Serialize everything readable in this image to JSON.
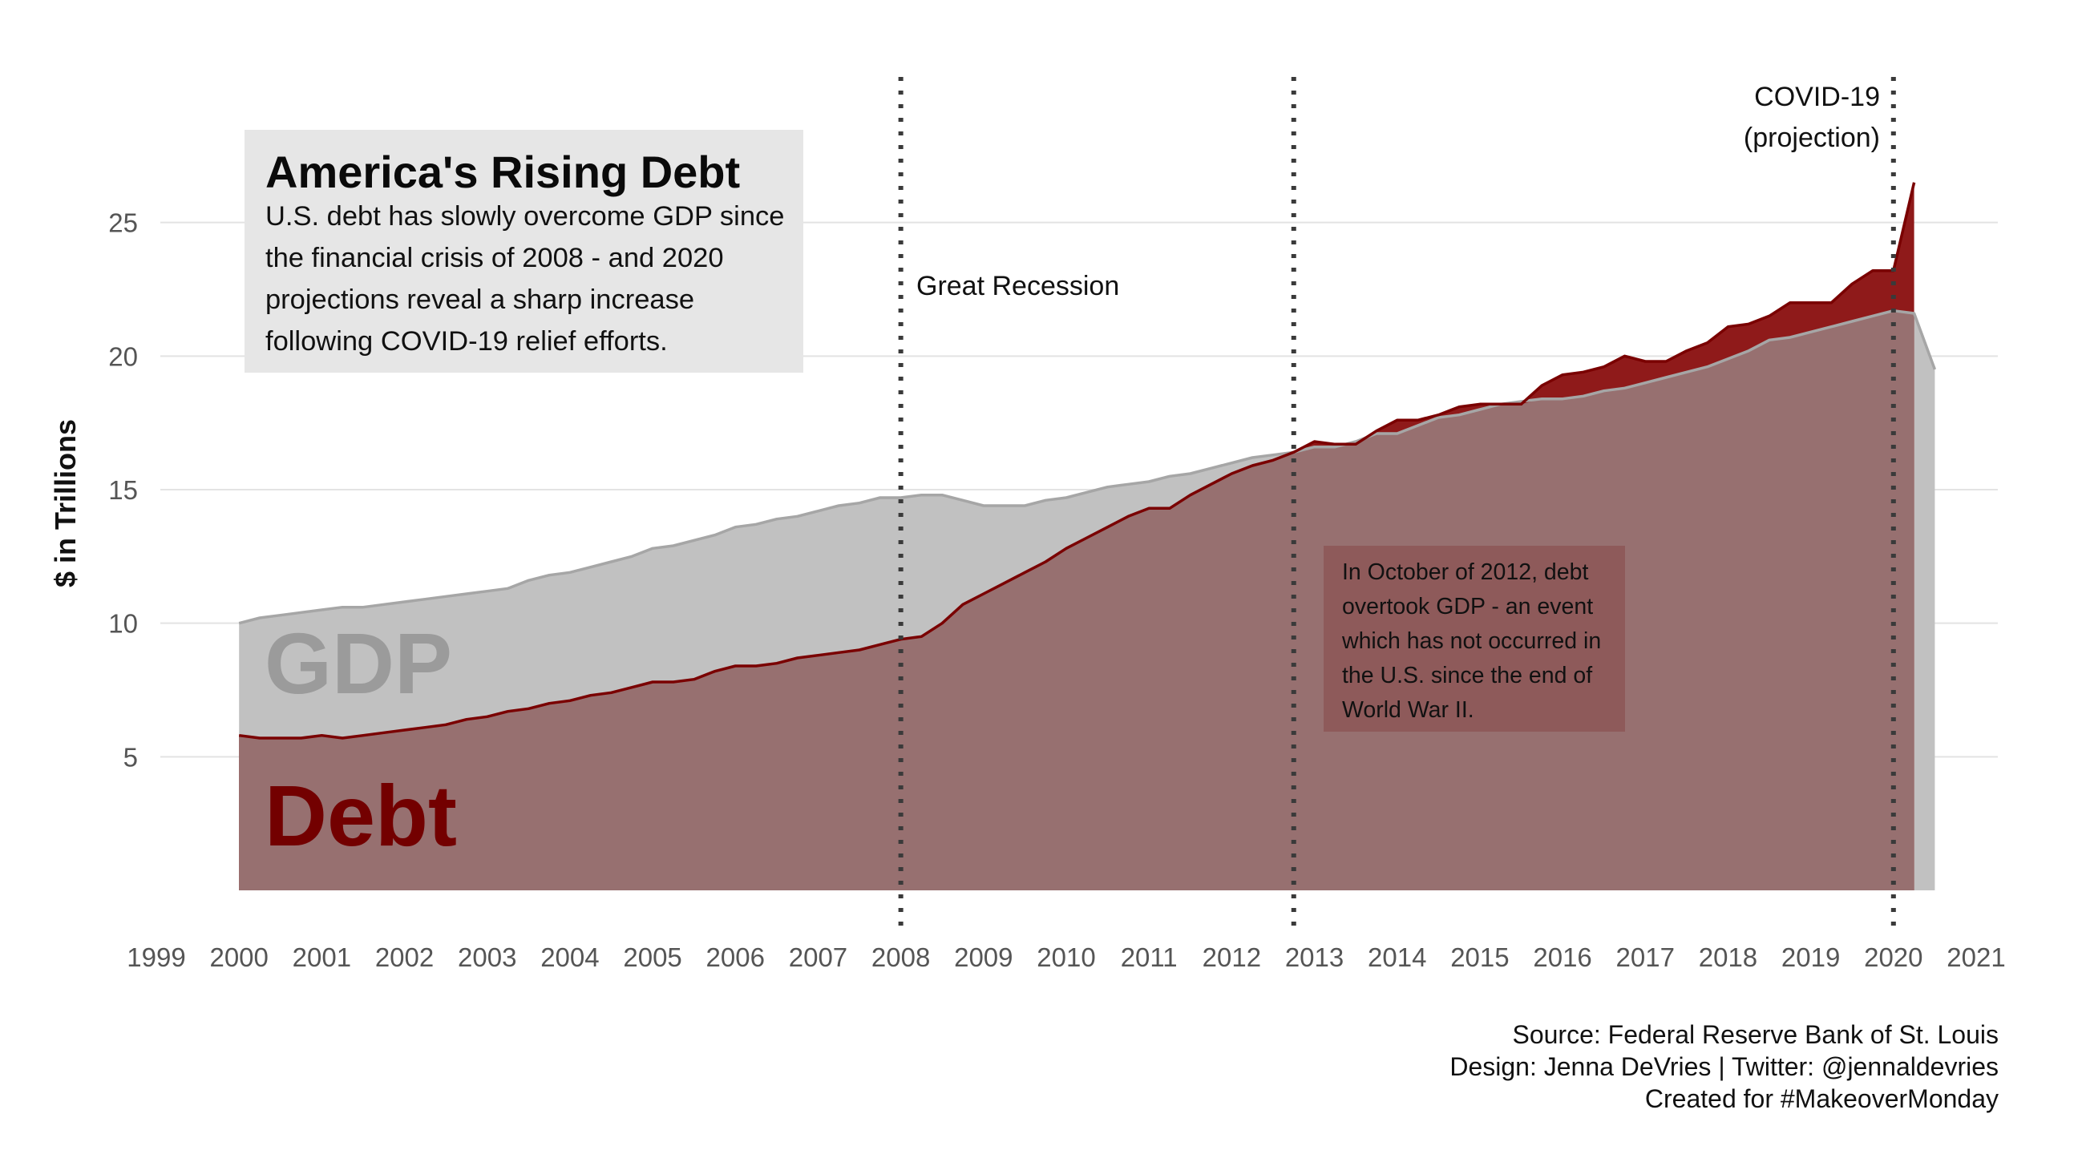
{
  "title": "America's Rising Debt",
  "subtitle": "U.S. debt has slowly overcome GDP since the financial crisis of 2008 - and 2020 projections reveal a sharp increase following COVID-19 relief efforts.",
  "annotations": {
    "recession": "Great Recession",
    "covid_line1": "COVID-19",
    "covid_line2": "(projection)",
    "crossover_note": "In October of 2012, debt overtook GDP - an event which has not occurred in the U.S. since the end of World War II.",
    "gdp_label": "GDP",
    "debt_label": "Debt"
  },
  "caption": {
    "source": "Source: Federal Reserve Bank of St. Louis",
    "design": "Design: Jenna DeVries | Twitter: @jennaldevries",
    "created": "Created for #MakeoverMonday"
  },
  "colors": {
    "gdp_fill": "#c1c1c1",
    "gdp_line": "#a6a6a6",
    "debt_fill": "#8f1a1a",
    "debt_line": "#7a0000",
    "overlap_fill": "#977070",
    "title_box": "#e6e6e6",
    "note_box": "#8c5656"
  },
  "chart_data": {
    "type": "area",
    "ylabel": "$ in Trillions",
    "xlabel": "",
    "xlim": [
      1999,
      2021
    ],
    "ylim": [
      0,
      27
    ],
    "x_ticks": [
      "1999",
      "2000",
      "2001",
      "2002",
      "2003",
      "2004",
      "2005",
      "2006",
      "2007",
      "2008",
      "2009",
      "2010",
      "2011",
      "2012",
      "2013",
      "2014",
      "2015",
      "2016",
      "2017",
      "2018",
      "2019",
      "2020",
      "2021"
    ],
    "y_ticks": [
      5,
      10,
      15,
      20,
      25
    ],
    "grid": true,
    "vertical_lines": [
      2008,
      2012.75,
      2020
    ],
    "series": [
      {
        "name": "GDP",
        "points": [
          [
            2000.0,
            10.0
          ],
          [
            2000.25,
            10.2
          ],
          [
            2000.5,
            10.3
          ],
          [
            2000.75,
            10.4
          ],
          [
            2001.0,
            10.5
          ],
          [
            2001.25,
            10.6
          ],
          [
            2001.5,
            10.6
          ],
          [
            2001.75,
            10.7
          ],
          [
            2002.0,
            10.8
          ],
          [
            2002.25,
            10.9
          ],
          [
            2002.5,
            11.0
          ],
          [
            2002.75,
            11.1
          ],
          [
            2003.0,
            11.2
          ],
          [
            2003.25,
            11.3
          ],
          [
            2003.5,
            11.6
          ],
          [
            2003.75,
            11.8
          ],
          [
            2004.0,
            11.9
          ],
          [
            2004.25,
            12.1
          ],
          [
            2004.5,
            12.3
          ],
          [
            2004.75,
            12.5
          ],
          [
            2005.0,
            12.8
          ],
          [
            2005.25,
            12.9
          ],
          [
            2005.5,
            13.1
          ],
          [
            2005.75,
            13.3
          ],
          [
            2006.0,
            13.6
          ],
          [
            2006.25,
            13.7
          ],
          [
            2006.5,
            13.9
          ],
          [
            2006.75,
            14.0
          ],
          [
            2007.0,
            14.2
          ],
          [
            2007.25,
            14.4
          ],
          [
            2007.5,
            14.5
          ],
          [
            2007.75,
            14.7
          ],
          [
            2008.0,
            14.7
          ],
          [
            2008.25,
            14.8
          ],
          [
            2008.5,
            14.8
          ],
          [
            2008.75,
            14.6
          ],
          [
            2009.0,
            14.4
          ],
          [
            2009.25,
            14.4
          ],
          [
            2009.5,
            14.4
          ],
          [
            2009.75,
            14.6
          ],
          [
            2010.0,
            14.7
          ],
          [
            2010.25,
            14.9
          ],
          [
            2010.5,
            15.1
          ],
          [
            2010.75,
            15.2
          ],
          [
            2011.0,
            15.3
          ],
          [
            2011.25,
            15.5
          ],
          [
            2011.5,
            15.6
          ],
          [
            2011.75,
            15.8
          ],
          [
            2012.0,
            16.0
          ],
          [
            2012.25,
            16.2
          ],
          [
            2012.5,
            16.3
          ],
          [
            2012.75,
            16.4
          ],
          [
            2013.0,
            16.6
          ],
          [
            2013.25,
            16.6
          ],
          [
            2013.5,
            16.8
          ],
          [
            2013.75,
            17.1
          ],
          [
            2014.0,
            17.1
          ],
          [
            2014.25,
            17.4
          ],
          [
            2014.5,
            17.7
          ],
          [
            2014.75,
            17.8
          ],
          [
            2015.0,
            18.0
          ],
          [
            2015.25,
            18.2
          ],
          [
            2015.5,
            18.3
          ],
          [
            2015.75,
            18.4
          ],
          [
            2016.0,
            18.4
          ],
          [
            2016.25,
            18.5
          ],
          [
            2016.5,
            18.7
          ],
          [
            2016.75,
            18.8
          ],
          [
            2017.0,
            19.0
          ],
          [
            2017.25,
            19.2
          ],
          [
            2017.5,
            19.4
          ],
          [
            2017.75,
            19.6
          ],
          [
            2018.0,
            19.9
          ],
          [
            2018.25,
            20.2
          ],
          [
            2018.5,
            20.6
          ],
          [
            2018.75,
            20.7
          ],
          [
            2019.0,
            20.9
          ],
          [
            2019.25,
            21.1
          ],
          [
            2019.5,
            21.3
          ],
          [
            2019.75,
            21.5
          ],
          [
            2020.0,
            21.7
          ],
          [
            2020.25,
            21.6
          ],
          [
            2020.5,
            19.5
          ]
        ]
      },
      {
        "name": "Debt",
        "points": [
          [
            2000.0,
            5.8
          ],
          [
            2000.25,
            5.7
          ],
          [
            2000.5,
            5.7
          ],
          [
            2000.75,
            5.7
          ],
          [
            2001.0,
            5.8
          ],
          [
            2001.25,
            5.7
          ],
          [
            2001.5,
            5.8
          ],
          [
            2001.75,
            5.9
          ],
          [
            2002.0,
            6.0
          ],
          [
            2002.25,
            6.1
          ],
          [
            2002.5,
            6.2
          ],
          [
            2002.75,
            6.4
          ],
          [
            2003.0,
            6.5
          ],
          [
            2003.25,
            6.7
          ],
          [
            2003.5,
            6.8
          ],
          [
            2003.75,
            7.0
          ],
          [
            2004.0,
            7.1
          ],
          [
            2004.25,
            7.3
          ],
          [
            2004.5,
            7.4
          ],
          [
            2004.75,
            7.6
          ],
          [
            2005.0,
            7.8
          ],
          [
            2005.25,
            7.8
          ],
          [
            2005.5,
            7.9
          ],
          [
            2005.75,
            8.2
          ],
          [
            2006.0,
            8.4
          ],
          [
            2006.25,
            8.4
          ],
          [
            2006.5,
            8.5
          ],
          [
            2006.75,
            8.7
          ],
          [
            2007.0,
            8.8
          ],
          [
            2007.25,
            8.9
          ],
          [
            2007.5,
            9.0
          ],
          [
            2007.75,
            9.2
          ],
          [
            2008.0,
            9.4
          ],
          [
            2008.25,
            9.5
          ],
          [
            2008.5,
            10.0
          ],
          [
            2008.75,
            10.7
          ],
          [
            2009.0,
            11.1
          ],
          [
            2009.25,
            11.5
          ],
          [
            2009.5,
            11.9
          ],
          [
            2009.75,
            12.3
          ],
          [
            2010.0,
            12.8
          ],
          [
            2010.25,
            13.2
          ],
          [
            2010.5,
            13.6
          ],
          [
            2010.75,
            14.0
          ],
          [
            2011.0,
            14.3
          ],
          [
            2011.25,
            14.3
          ],
          [
            2011.5,
            14.8
          ],
          [
            2011.75,
            15.2
          ],
          [
            2012.0,
            15.6
          ],
          [
            2012.25,
            15.9
          ],
          [
            2012.5,
            16.1
          ],
          [
            2012.75,
            16.4
          ],
          [
            2013.0,
            16.8
          ],
          [
            2013.25,
            16.7
          ],
          [
            2013.5,
            16.7
          ],
          [
            2013.75,
            17.2
          ],
          [
            2014.0,
            17.6
          ],
          [
            2014.25,
            17.6
          ],
          [
            2014.5,
            17.8
          ],
          [
            2014.75,
            18.1
          ],
          [
            2015.0,
            18.2
          ],
          [
            2015.25,
            18.2
          ],
          [
            2015.5,
            18.2
          ],
          [
            2015.75,
            18.9
          ],
          [
            2016.0,
            19.3
          ],
          [
            2016.25,
            19.4
          ],
          [
            2016.5,
            19.6
          ],
          [
            2016.75,
            20.0
          ],
          [
            2017.0,
            19.8
          ],
          [
            2017.25,
            19.8
          ],
          [
            2017.5,
            20.2
          ],
          [
            2017.75,
            20.5
          ],
          [
            2018.0,
            21.1
          ],
          [
            2018.25,
            21.2
          ],
          [
            2018.5,
            21.5
          ],
          [
            2018.75,
            22.0
          ],
          [
            2019.0,
            22.0
          ],
          [
            2019.25,
            22.0
          ],
          [
            2019.5,
            22.7
          ],
          [
            2019.75,
            23.2
          ],
          [
            2020.0,
            23.2
          ],
          [
            2020.25,
            26.5
          ]
        ]
      }
    ]
  }
}
